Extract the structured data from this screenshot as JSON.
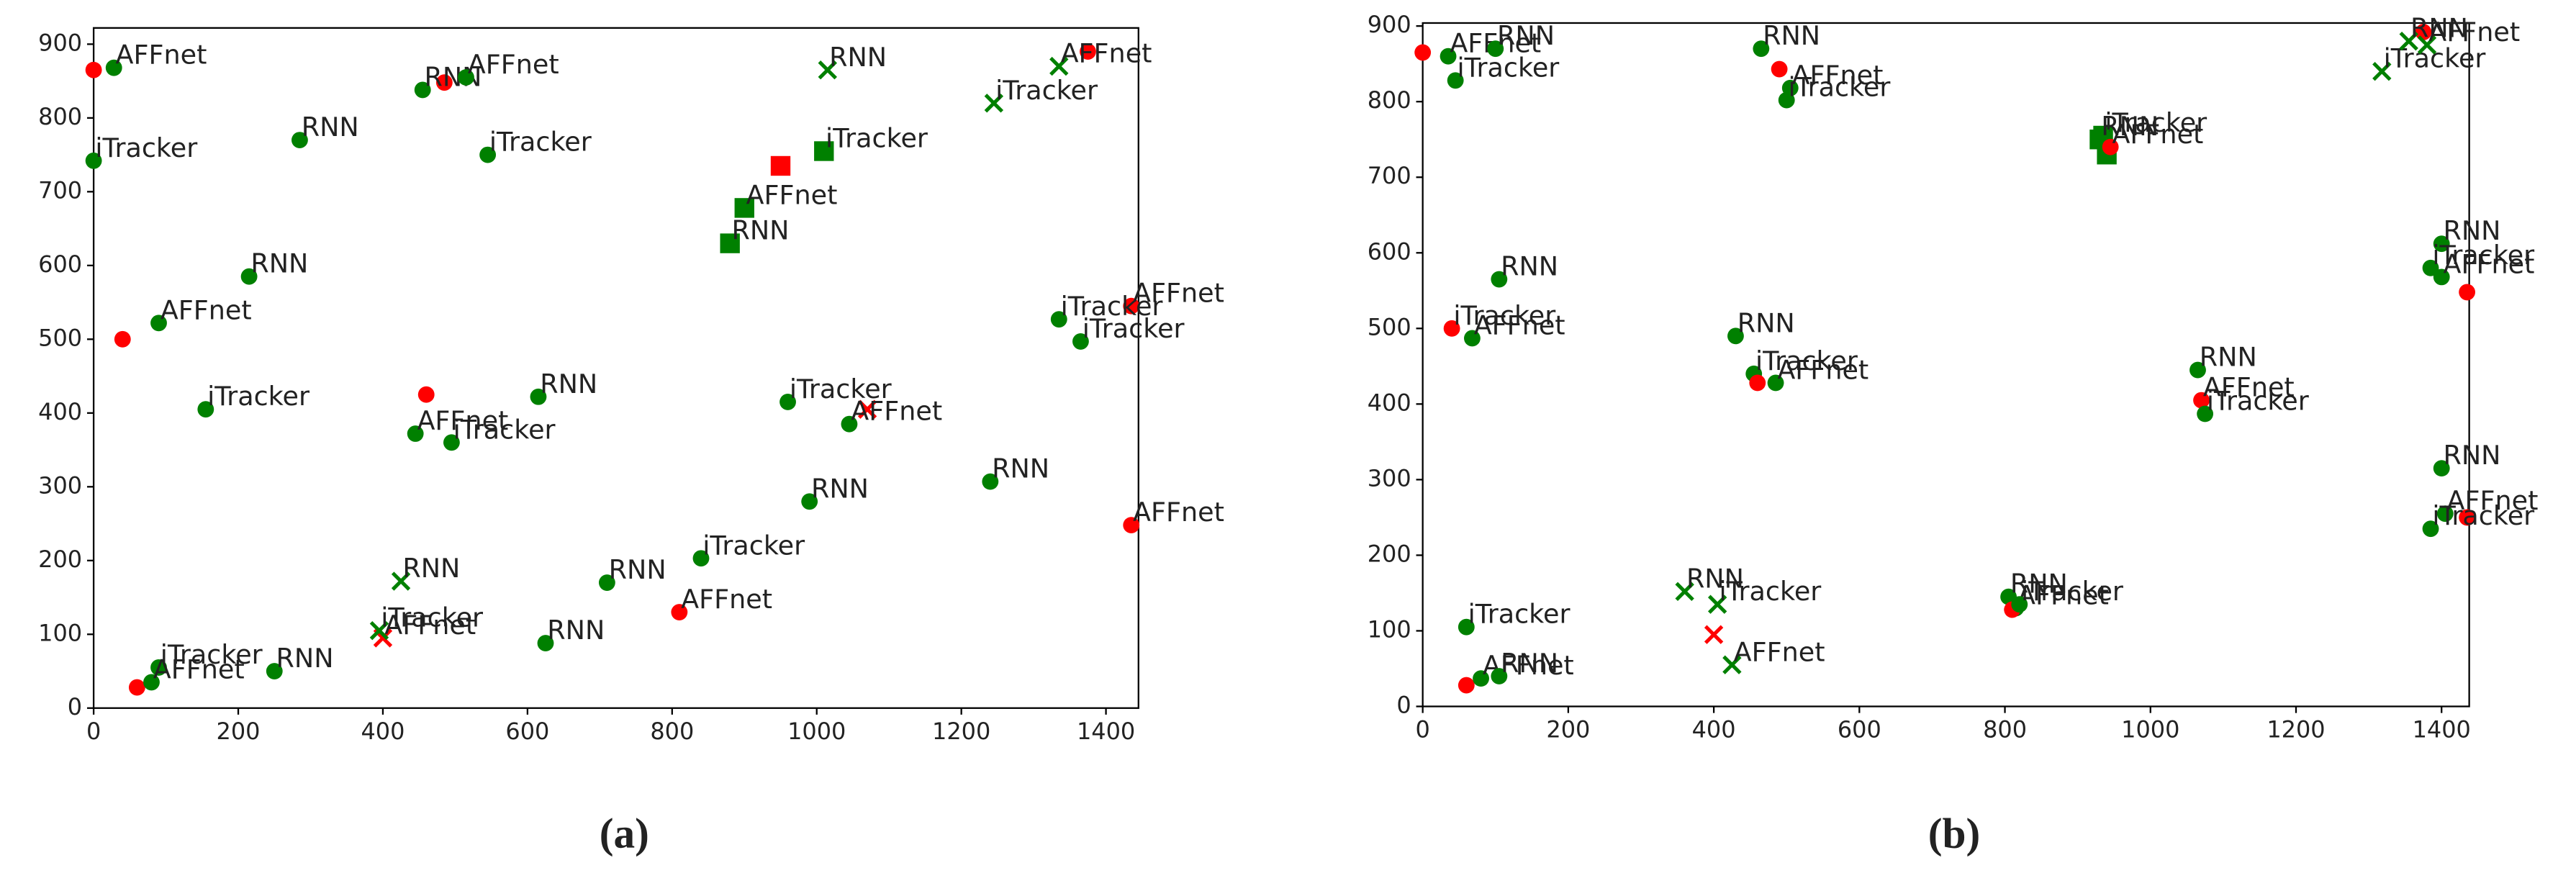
{
  "chart_data": [
    {
      "type": "scatter",
      "caption": "(a)",
      "xlim": [
        0,
        1445
      ],
      "ylim": [
        0,
        922
      ],
      "xticks": [
        0,
        200,
        400,
        600,
        800,
        1000,
        1200,
        1400
      ],
      "yticks": [
        0,
        100,
        200,
        300,
        400,
        500,
        600,
        700,
        800,
        900
      ],
      "points": [
        {
          "x": 0,
          "y": 865,
          "color": "#ff0000",
          "marker": "circle"
        },
        {
          "x": 485,
          "y": 848,
          "color": "#ff0000",
          "marker": "circle"
        },
        {
          "x": 1375,
          "y": 890,
          "color": "#ff0000",
          "marker": "circle"
        },
        {
          "x": 950,
          "y": 735,
          "color": "#ff0000",
          "marker": "square"
        },
        {
          "x": 40,
          "y": 500,
          "color": "#ff0000",
          "marker": "circle"
        },
        {
          "x": 460,
          "y": 425,
          "color": "#ff0000",
          "marker": "circle"
        },
        {
          "x": 1435,
          "y": 545,
          "color": "#ff0000",
          "marker": "circle",
          "label": "AFFnet"
        },
        {
          "x": 1070,
          "y": 405,
          "color": "#ff0000",
          "marker": "x"
        },
        {
          "x": 1435,
          "y": 248,
          "color": "#ff0000",
          "marker": "circle",
          "label": "AFFnet"
        },
        {
          "x": 810,
          "y": 130,
          "color": "#ff0000",
          "marker": "circle",
          "label": "AFFnet"
        },
        {
          "x": 400,
          "y": 95,
          "color": "#ff0000",
          "marker": "x",
          "label": "AFFnet"
        },
        {
          "x": 60,
          "y": 28,
          "color": "#ff0000",
          "marker": "circle"
        },
        {
          "x": 28,
          "y": 868,
          "color": "#008000",
          "marker": "circle",
          "label": "AFFnet"
        },
        {
          "x": 0,
          "y": 742,
          "color": "#008000",
          "marker": "circle",
          "label": "iTracker"
        },
        {
          "x": 285,
          "y": 770,
          "color": "#008000",
          "marker": "circle",
          "label": "RNN"
        },
        {
          "x": 455,
          "y": 838,
          "color": "#008000",
          "marker": "circle",
          "label": "RNN"
        },
        {
          "x": 515,
          "y": 855,
          "color": "#008000",
          "marker": "circle",
          "label": "AFFnet"
        },
        {
          "x": 545,
          "y": 750,
          "color": "#008000",
          "marker": "circle",
          "label": "iTracker"
        },
        {
          "x": 1015,
          "y": 865,
          "color": "#008000",
          "marker": "x",
          "label": "RNN"
        },
        {
          "x": 1335,
          "y": 870,
          "color": "#008000",
          "marker": "x",
          "label": "AFFnet"
        },
        {
          "x": 1245,
          "y": 820,
          "color": "#008000",
          "marker": "x",
          "label": "iTracker"
        },
        {
          "x": 1010,
          "y": 755,
          "color": "#008000",
          "marker": "square",
          "label": "iTracker"
        },
        {
          "x": 900,
          "y": 678,
          "color": "#008000",
          "marker": "square",
          "label": "AFFnet"
        },
        {
          "x": 880,
          "y": 630,
          "color": "#008000",
          "marker": "square",
          "label": "RNN"
        },
        {
          "x": 215,
          "y": 585,
          "color": "#008000",
          "marker": "circle",
          "label": "RNN"
        },
        {
          "x": 90,
          "y": 522,
          "color": "#008000",
          "marker": "circle",
          "label": "AFFnet"
        },
        {
          "x": 1335,
          "y": 527,
          "color": "#008000",
          "marker": "circle",
          "label": "iTracker"
        },
        {
          "x": 1365,
          "y": 497,
          "color": "#008000",
          "marker": "circle",
          "label": "iTracker"
        },
        {
          "x": 155,
          "y": 405,
          "color": "#008000",
          "marker": "circle",
          "label": "iTracker"
        },
        {
          "x": 615,
          "y": 422,
          "color": "#008000",
          "marker": "circle",
          "label": "RNN"
        },
        {
          "x": 960,
          "y": 415,
          "color": "#008000",
          "marker": "circle",
          "label": "iTracker"
        },
        {
          "x": 1045,
          "y": 385,
          "color": "#008000",
          "marker": "circle",
          "label": "AFFnet"
        },
        {
          "x": 445,
          "y": 372,
          "color": "#008000",
          "marker": "circle",
          "label": "AFFnet"
        },
        {
          "x": 495,
          "y": 360,
          "color": "#008000",
          "marker": "circle",
          "label": "iTracker"
        },
        {
          "x": 990,
          "y": 280,
          "color": "#008000",
          "marker": "circle",
          "label": "RNN"
        },
        {
          "x": 1240,
          "y": 307,
          "color": "#008000",
          "marker": "circle",
          "label": "RNN"
        },
        {
          "x": 840,
          "y": 203,
          "color": "#008000",
          "marker": "circle",
          "label": "iTracker"
        },
        {
          "x": 710,
          "y": 170,
          "color": "#008000",
          "marker": "circle",
          "label": "RNN"
        },
        {
          "x": 425,
          "y": 172,
          "color": "#008000",
          "marker": "x",
          "label": "RNN"
        },
        {
          "x": 395,
          "y": 105,
          "color": "#008000",
          "marker": "x",
          "label": "iTracker"
        },
        {
          "x": 625,
          "y": 88,
          "color": "#008000",
          "marker": "circle",
          "label": "RNN"
        },
        {
          "x": 250,
          "y": 50,
          "color": "#008000",
          "marker": "circle",
          "label": "RNN"
        },
        {
          "x": 90,
          "y": 55,
          "color": "#008000",
          "marker": "circle",
          "label": "iTracker"
        },
        {
          "x": 80,
          "y": 35,
          "color": "#008000",
          "marker": "circle",
          "label": "AFFnet"
        }
      ]
    },
    {
      "type": "scatter",
      "caption": "(b)",
      "xlim": [
        0,
        1438
      ],
      "ylim": [
        0,
        904
      ],
      "xticks": [
        0,
        200,
        400,
        600,
        800,
        1000,
        1200,
        1400
      ],
      "yticks": [
        0,
        100,
        200,
        300,
        400,
        500,
        600,
        700,
        800,
        900
      ],
      "points": [
        {
          "x": 0,
          "y": 865,
          "color": "#ff0000",
          "marker": "circle"
        },
        {
          "x": 35,
          "y": 860,
          "color": "#008000",
          "marker": "circle",
          "label": "AFFnet"
        },
        {
          "x": 45,
          "y": 828,
          "color": "#008000",
          "marker": "circle",
          "label": "iTracker"
        },
        {
          "x": 100,
          "y": 870,
          "color": "#008000",
          "marker": "circle",
          "label": "RNN"
        },
        {
          "x": 465,
          "y": 870,
          "color": "#008000",
          "marker": "circle",
          "label": "RNN"
        },
        {
          "x": 490,
          "y": 843,
          "color": "#ff0000",
          "marker": "circle"
        },
        {
          "x": 505,
          "y": 818,
          "color": "#008000",
          "marker": "circle",
          "label": "AFFnet"
        },
        {
          "x": 500,
          "y": 802,
          "color": "#008000",
          "marker": "circle",
          "label": "iTracker"
        },
        {
          "x": 935,
          "y": 755,
          "color": "#008000",
          "marker": "square",
          "label": "iTracker"
        },
        {
          "x": 930,
          "y": 750,
          "color": "#008000",
          "marker": "square",
          "label": "RNN"
        },
        {
          "x": 940,
          "y": 730,
          "color": "#008000",
          "marker": "square"
        },
        {
          "x": 945,
          "y": 740,
          "color": "#ff0000",
          "marker": "circle",
          "label": "AFFnet"
        },
        {
          "x": 1375,
          "y": 892,
          "color": "#ff0000",
          "marker": "circle"
        },
        {
          "x": 1318,
          "y": 840,
          "color": "#008000",
          "marker": "x",
          "label": "iTracker"
        },
        {
          "x": 1355,
          "y": 880,
          "color": "#008000",
          "marker": "x",
          "label": "RNN"
        },
        {
          "x": 1380,
          "y": 875,
          "color": "#008000",
          "marker": "x",
          "label": "AFFnet"
        },
        {
          "x": 105,
          "y": 565,
          "color": "#008000",
          "marker": "circle",
          "label": "RNN"
        },
        {
          "x": 40,
          "y": 500,
          "color": "#ff0000",
          "marker": "circle",
          "label": "iTracker"
        },
        {
          "x": 68,
          "y": 487,
          "color": "#008000",
          "marker": "circle",
          "label": "AFFnet"
        },
        {
          "x": 430,
          "y": 490,
          "color": "#008000",
          "marker": "circle",
          "label": "RNN"
        },
        {
          "x": 455,
          "y": 440,
          "color": "#008000",
          "marker": "circle",
          "label": "iTracker"
        },
        {
          "x": 460,
          "y": 428,
          "color": "#ff0000",
          "marker": "circle"
        },
        {
          "x": 485,
          "y": 428,
          "color": "#008000",
          "marker": "circle",
          "label": "AFFnet"
        },
        {
          "x": 1065,
          "y": 445,
          "color": "#008000",
          "marker": "circle",
          "label": "RNN"
        },
        {
          "x": 1070,
          "y": 405,
          "color": "#ff0000",
          "marker": "circle",
          "label": "AFFnet"
        },
        {
          "x": 1075,
          "y": 387,
          "color": "#008000",
          "marker": "circle",
          "label": "iTracker"
        },
        {
          "x": 1400,
          "y": 612,
          "color": "#008000",
          "marker": "circle",
          "label": "RNN"
        },
        {
          "x": 1385,
          "y": 580,
          "color": "#008000",
          "marker": "circle",
          "label": "iTracker"
        },
        {
          "x": 1435,
          "y": 548,
          "color": "#ff0000",
          "marker": "circle"
        },
        {
          "x": 1400,
          "y": 568,
          "color": "#008000",
          "marker": "circle",
          "label": "AFFnet"
        },
        {
          "x": 1400,
          "y": 315,
          "color": "#008000",
          "marker": "circle",
          "label": "RNN"
        },
        {
          "x": 1405,
          "y": 255,
          "color": "#008000",
          "marker": "circle",
          "label": "AFFnet"
        },
        {
          "x": 1435,
          "y": 250,
          "color": "#ff0000",
          "marker": "circle"
        },
        {
          "x": 1385,
          "y": 235,
          "color": "#008000",
          "marker": "circle",
          "label": "iTracker"
        },
        {
          "x": 360,
          "y": 152,
          "color": "#008000",
          "marker": "x",
          "label": "RNN"
        },
        {
          "x": 405,
          "y": 135,
          "color": "#008000",
          "marker": "x",
          "label": "iTracker"
        },
        {
          "x": 400,
          "y": 95,
          "color": "#ff0000",
          "marker": "x"
        },
        {
          "x": 425,
          "y": 55,
          "color": "#008000",
          "marker": "x",
          "label": "AFFnet"
        },
        {
          "x": 805,
          "y": 145,
          "color": "#008000",
          "marker": "circle",
          "label": "RNN"
        },
        {
          "x": 815,
          "y": 130,
          "color": "#008000",
          "marker": "circle",
          "label": "AFFnet"
        },
        {
          "x": 810,
          "y": 128,
          "color": "#ff0000",
          "marker": "circle"
        },
        {
          "x": 820,
          "y": 135,
          "color": "#008000",
          "marker": "circle",
          "label": "iTracker"
        },
        {
          "x": 60,
          "y": 105,
          "color": "#008000",
          "marker": "circle",
          "label": "iTracker"
        },
        {
          "x": 60,
          "y": 28,
          "color": "#ff0000",
          "marker": "circle"
        },
        {
          "x": 80,
          "y": 37,
          "color": "#008000",
          "marker": "circle",
          "label": "AFFnet"
        },
        {
          "x": 105,
          "y": 40,
          "color": "#008000",
          "marker": "circle",
          "label": "RNN"
        }
      ]
    }
  ]
}
